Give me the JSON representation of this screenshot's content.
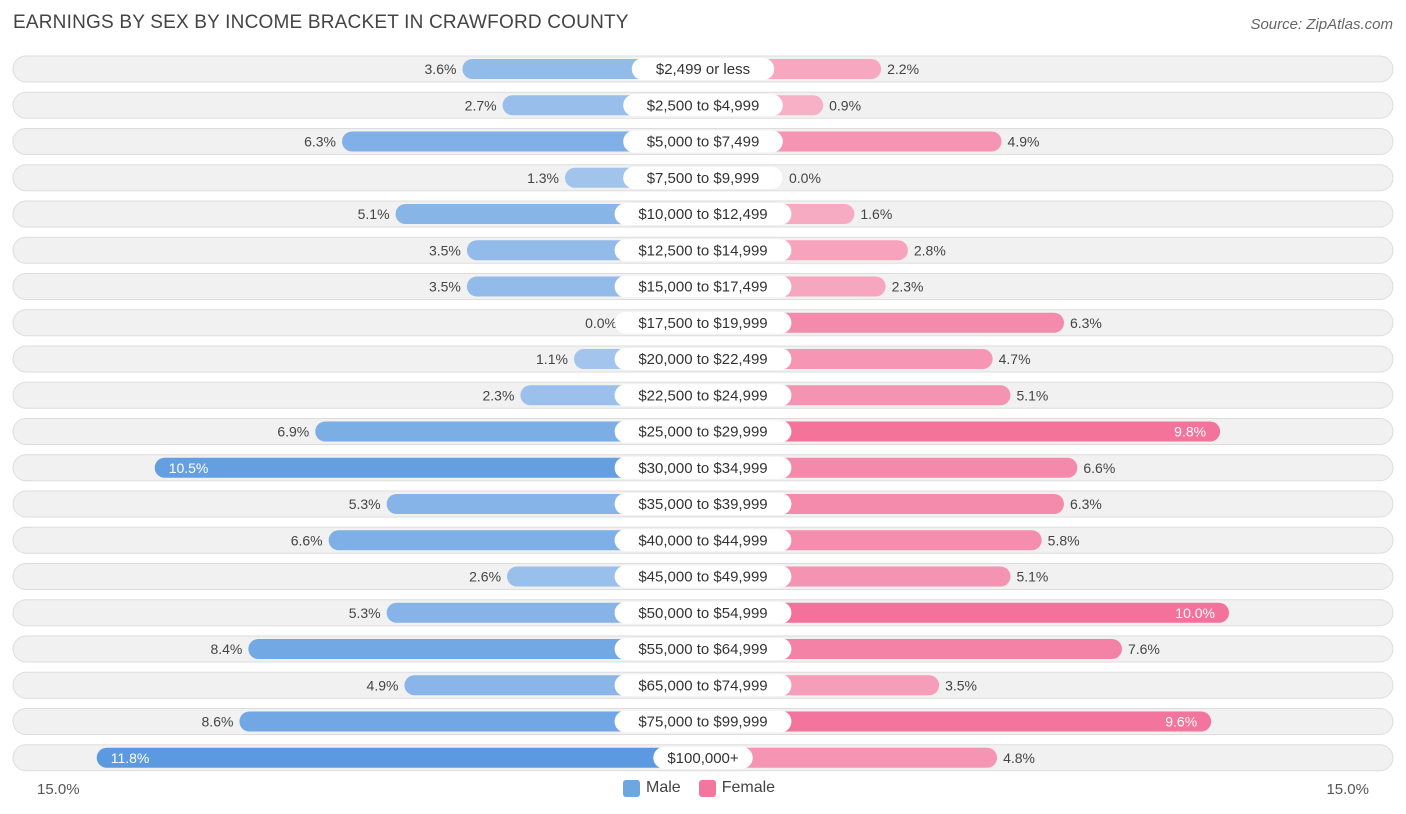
{
  "title": "EARNINGS BY SEX BY INCOME BRACKET IN CRAWFORD COUNTY",
  "source": "Source: ZipAtlas.com",
  "colors": {
    "male": "#6ea6e0",
    "female": "#f4759d",
    "row_bg": "#f1f1f1",
    "row_border": "#dddddd"
  },
  "chart_data": {
    "type": "bar",
    "orientation": "horizontal-diverging",
    "xlim": [
      -15.0,
      15.0
    ],
    "axis_left_label": "15.0%",
    "axis_right_label": "15.0%",
    "legend": [
      "Male",
      "Female"
    ],
    "categories": [
      "$2,499 or less",
      "$2,500 to $4,999",
      "$5,000 to $7,499",
      "$7,500 to $9,999",
      "$10,000 to $12,499",
      "$12,500 to $14,999",
      "$15,000 to $17,499",
      "$17,500 to $19,999",
      "$20,000 to $22,499",
      "$22,500 to $24,999",
      "$25,000 to $29,999",
      "$30,000 to $34,999",
      "$35,000 to $39,999",
      "$40,000 to $44,999",
      "$45,000 to $49,999",
      "$50,000 to $54,999",
      "$55,000 to $64,999",
      "$65,000 to $74,999",
      "$75,000 to $99,999",
      "$100,000+"
    ],
    "series": [
      {
        "name": "Male",
        "values": [
          3.6,
          2.7,
          6.3,
          1.3,
          5.1,
          3.5,
          3.5,
          0.0,
          1.1,
          2.3,
          6.9,
          10.5,
          5.3,
          6.6,
          2.6,
          5.3,
          8.4,
          4.9,
          8.6,
          11.8
        ]
      },
      {
        "name": "Female",
        "values": [
          2.2,
          0.9,
          4.9,
          0.0,
          1.6,
          2.8,
          2.3,
          6.3,
          4.7,
          5.1,
          9.8,
          6.6,
          6.3,
          5.8,
          5.1,
          10.0,
          7.6,
          3.5,
          9.6,
          4.8
        ]
      }
    ],
    "value_labels": {
      "male": [
        "3.6%",
        "2.7%",
        "6.3%",
        "1.3%",
        "5.1%",
        "3.5%",
        "3.5%",
        "0.0%",
        "1.1%",
        "2.3%",
        "6.9%",
        "10.5%",
        "5.3%",
        "6.6%",
        "2.6%",
        "5.3%",
        "8.4%",
        "4.9%",
        "8.6%",
        "11.8%"
      ],
      "female": [
        "2.2%",
        "0.9%",
        "4.9%",
        "0.0%",
        "1.6%",
        "2.8%",
        "2.3%",
        "6.3%",
        "4.7%",
        "5.1%",
        "9.8%",
        "6.6%",
        "6.3%",
        "5.8%",
        "5.1%",
        "10.0%",
        "7.6%",
        "3.5%",
        "9.6%",
        "4.8%"
      ]
    }
  }
}
